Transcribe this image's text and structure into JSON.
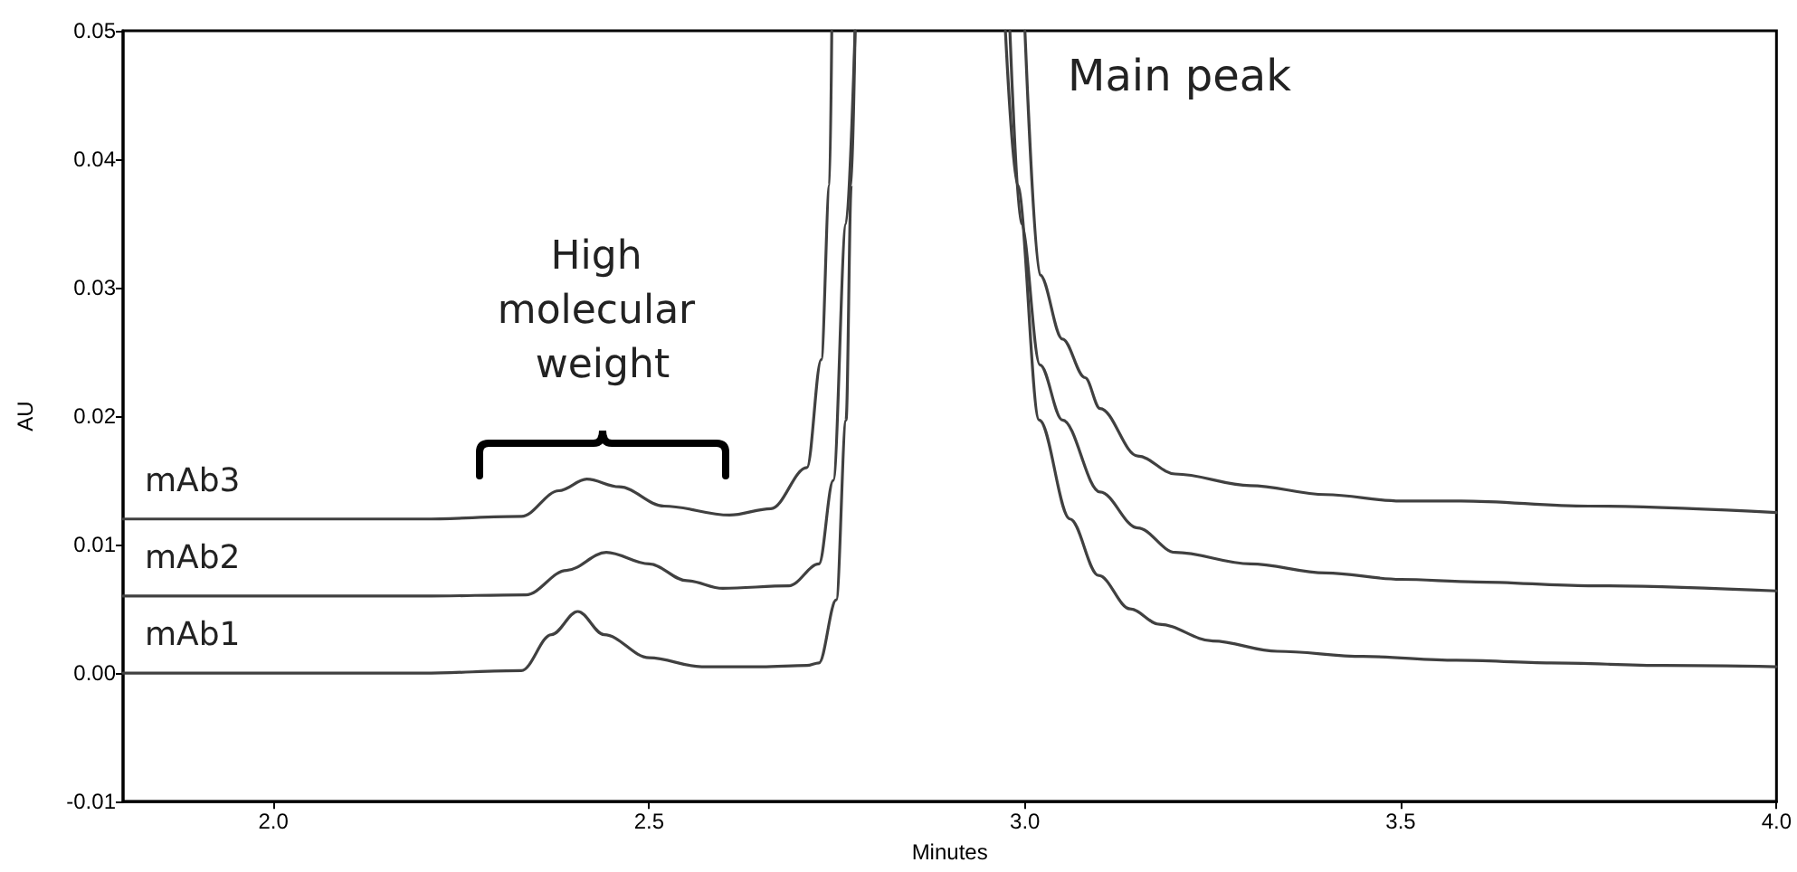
{
  "chart_data": {
    "type": "line",
    "xlabel": "Minutes",
    "ylabel": "AU",
    "xlim": [
      1.8,
      4.0
    ],
    "xticks": [
      {
        "value": 2,
        "label": "2.0"
      },
      2.5,
      {
        "value": 3,
        "label": "3.0"
      },
      3.5,
      {
        "value": 4,
        "label": "4.0"
      }
    ],
    "ylim": [
      -0.01,
      0.05
    ],
    "yticks": [
      -0.01,
      {
        "value": 0,
        "label": "0.00"
      },
      0.01,
      0.02,
      0.03,
      0.04,
      0.05
    ],
    "grid": false,
    "legend": false,
    "marker": "none",
    "line_style": "solid",
    "series": [
      {
        "name": "mAb1",
        "color": "#404040",
        "x": [
          1.8,
          2.0,
          2.2,
          2.33,
          2.37,
          2.405,
          2.44,
          2.5,
          2.57,
          2.65,
          2.71,
          2.726,
          2.749,
          2.762,
          2.769,
          2.774,
          2.87,
          2.974,
          2.99,
          3.019,
          3.06,
          3.098,
          3.14,
          3.179,
          3.25,
          3.336,
          3.45,
          3.574,
          3.7,
          3.85,
          4.0
        ],
        "values": [
          0,
          0,
          0,
          0.0002,
          0.003,
          0.0048,
          0.003,
          0.0012,
          0.0005,
          0.0005,
          0.0006,
          0.0008,
          0.0057,
          0.0197,
          0.038,
          0.05,
          null,
          0.05,
          0.038,
          0.0197,
          0.012,
          0.0076,
          0.005,
          0.0038,
          0.0025,
          0.0017,
          0.0013,
          0.001,
          0.0008,
          0.0006,
          0.0005
        ]
      },
      {
        "name": "mAb2",
        "color": "#404040",
        "x": [
          1.8,
          2.0,
          2.2,
          2.336,
          2.39,
          2.443,
          2.5,
          2.55,
          2.598,
          2.686,
          2.726,
          2.745,
          2.762,
          2.774,
          2.87,
          2.98,
          2.995,
          3.02,
          3.05,
          3.1,
          3.15,
          3.2,
          3.3,
          3.4,
          3.5,
          3.6,
          3.75,
          4.0
        ],
        "values": [
          0.006,
          0.006,
          0.006,
          0.0061,
          0.008,
          0.0094,
          0.0085,
          0.0072,
          0.0066,
          0.0068,
          0.0085,
          0.015,
          0.035,
          0.05,
          null,
          0.05,
          0.035,
          0.024,
          0.0197,
          0.0141,
          0.0113,
          0.0094,
          0.0085,
          0.0078,
          0.0073,
          0.0071,
          0.0068,
          0.0064
        ]
      },
      {
        "name": "mAb3",
        "color": "#404040",
        "x": [
          1.8,
          2.0,
          2.2,
          2.33,
          2.38,
          2.417,
          2.46,
          2.52,
          2.607,
          2.662,
          2.71,
          2.729,
          2.74,
          2.743,
          2.87,
          3.0,
          3.02,
          3.05,
          3.08,
          3.1,
          3.15,
          3.2,
          3.3,
          3.4,
          3.5,
          3.58,
          3.75,
          4.0
        ],
        "values": [
          0.012,
          0.012,
          0.012,
          0.0122,
          0.0142,
          0.0151,
          0.0145,
          0.013,
          0.0123,
          0.0128,
          0.016,
          0.0244,
          0.038,
          0.05,
          null,
          0.05,
          0.031,
          0.026,
          0.023,
          0.0206,
          0.0169,
          0.0155,
          0.0146,
          0.0139,
          0.0134,
          0.0134,
          0.013,
          0.0125
        ]
      }
    ],
    "annotations": [
      "High molecular weight",
      "Main peak"
    ]
  }
}
